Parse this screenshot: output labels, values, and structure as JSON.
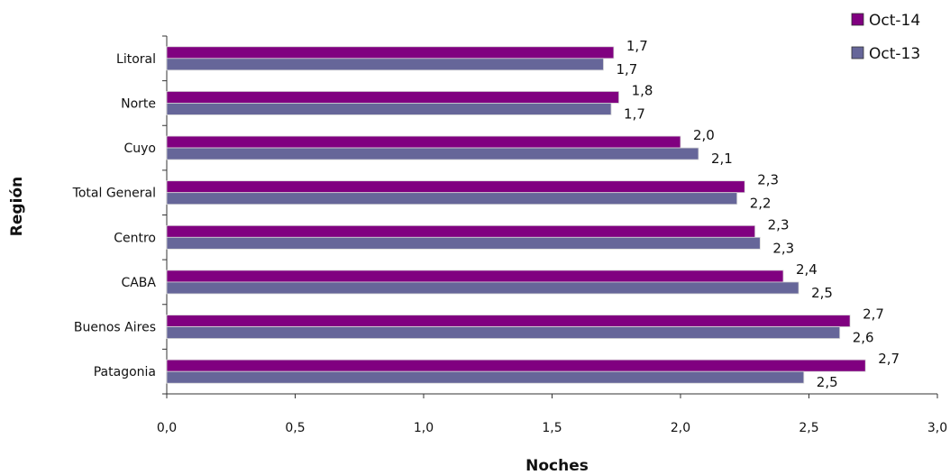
{
  "chart_data": {
    "type": "bar",
    "orientation": "horizontal",
    "categories": [
      "Litoral",
      "Norte",
      "Cuyo",
      "Total General",
      "Centro",
      "CABA",
      "Buenos Aires",
      "Patagonia"
    ],
    "series": [
      {
        "name": "Oct-14",
        "values": [
          1.74,
          1.76,
          2.0,
          2.25,
          2.29,
          2.4,
          2.66,
          2.72
        ],
        "labels": [
          "1,7",
          "1,8",
          "2,0",
          "2,3",
          "2,3",
          "2,4",
          "2,7",
          "2,7"
        ],
        "color": "#800080"
      },
      {
        "name": "Oct-13",
        "values": [
          1.7,
          1.73,
          2.07,
          2.22,
          2.31,
          2.46,
          2.62,
          2.48
        ],
        "labels": [
          "1,7",
          "1,7",
          "2,1",
          "2,2",
          "2,3",
          "2,5",
          "2,6",
          "2,5"
        ],
        "color": "#666699"
      }
    ],
    "xlabel": "Noches",
    "ylabel": "Región",
    "xlim": [
      0,
      3
    ],
    "xticks": [
      0,
      0.5,
      1,
      1.5,
      2,
      2.5,
      3
    ],
    "xtick_labels": [
      "0,0",
      "0,5",
      "1,0",
      "1,5",
      "2,0",
      "2,5",
      "3,0"
    ],
    "grid": false,
    "legend_position": "top-right"
  }
}
